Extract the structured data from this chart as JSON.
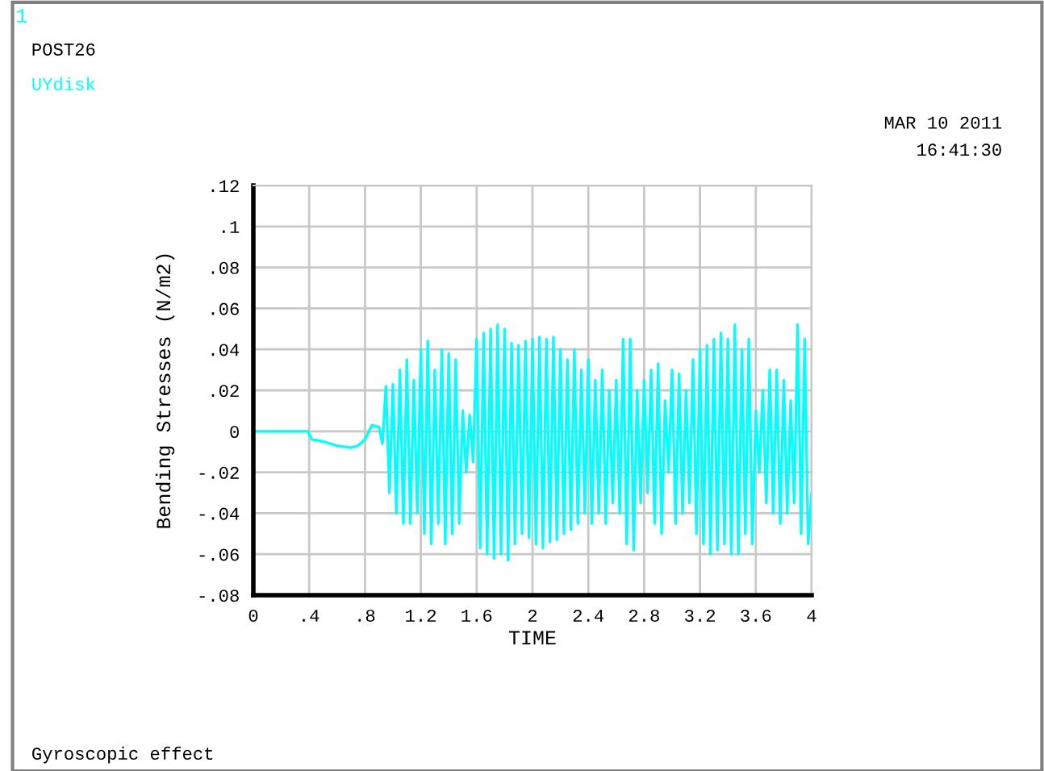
{
  "chart_data": {
    "type": "line",
    "xlabel": "TIME",
    "ylabel": "Bending Stresses (N/m2)",
    "annotations": [
      "1",
      "POST26",
      "MAR 10 2011",
      "16:41:30",
      "Gyroscopic effect"
    ],
    "legend": "top left",
    "grid": true,
    "marker": "none",
    "line_style": "solid",
    "xlim": [
      0,
      4
    ],
    "ylim": [
      -0.08,
      0.12
    ],
    "xticks": [
      0,
      {
        "value": 0.4,
        "label": ".4"
      },
      {
        "value": 0.8,
        "label": ".8"
      },
      {
        "value": 1.2,
        "label": "1.2"
      },
      {
        "value": 1.6,
        "label": "1.6"
      },
      2,
      {
        "value": 2.4,
        "label": "2.4"
      },
      {
        "value": 2.8,
        "label": "2.8"
      },
      {
        "value": 3.2,
        "label": "3.2"
      },
      {
        "value": 3.6,
        "label": "3.6"
      },
      4
    ],
    "yticks": [
      {
        "value": -0.08,
        "label": "-.08"
      },
      {
        "value": -0.06,
        "label": "-.06"
      },
      {
        "value": -0.04,
        "label": "-.04"
      },
      {
        "value": -0.02,
        "label": "-.02"
      },
      0,
      {
        "value": 0.02,
        "label": ".02"
      },
      {
        "value": 0.04,
        "label": ".04"
      },
      {
        "value": 0.06,
        "label": ".06"
      },
      {
        "value": 0.08,
        "label": ".08"
      },
      {
        "value": 0.1,
        "label": ".1"
      },
      {
        "value": 0.12,
        "label": ".12"
      }
    ],
    "series": [
      {
        "name": "UYdisk",
        "color": "#00ffff",
        "x": [
          0,
          0.39,
          0.42,
          0.5,
          0.6,
          0.7,
          0.75,
          0.8,
          0.85,
          0.9,
          0.925,
          0.95,
          0.975,
          1.0,
          1.025,
          1.05,
          1.075,
          1.1,
          1.125,
          1.15,
          1.175,
          1.2,
          1.225,
          1.25,
          1.275,
          1.3,
          1.325,
          1.35,
          1.375,
          1.4,
          1.425,
          1.45,
          1.475,
          1.5,
          1.525,
          1.55,
          1.575,
          1.6,
          1.625,
          1.65,
          1.675,
          1.7,
          1.725,
          1.75,
          1.775,
          1.8,
          1.825,
          1.85,
          1.875,
          1.9,
          1.925,
          1.95,
          1.975,
          2.0,
          2.025,
          2.05,
          2.075,
          2.1,
          2.125,
          2.15,
          2.175,
          2.2,
          2.225,
          2.25,
          2.275,
          2.3,
          2.325,
          2.35,
          2.375,
          2.4,
          2.425,
          2.45,
          2.475,
          2.5,
          2.525,
          2.55,
          2.575,
          2.6,
          2.625,
          2.65,
          2.675,
          2.7,
          2.725,
          2.75,
          2.775,
          2.8,
          2.825,
          2.85,
          2.875,
          2.9,
          2.925,
          2.95,
          2.975,
          3.0,
          3.025,
          3.05,
          3.075,
          3.1,
          3.125,
          3.15,
          3.175,
          3.2,
          3.225,
          3.25,
          3.275,
          3.3,
          3.325,
          3.35,
          3.375,
          3.4,
          3.425,
          3.45,
          3.475,
          3.5,
          3.525,
          3.55,
          3.575,
          3.6,
          3.625,
          3.65,
          3.675,
          3.7,
          3.725,
          3.75,
          3.775,
          3.8,
          3.825,
          3.85,
          3.875,
          3.9,
          3.925,
          3.95,
          3.975,
          4.0
        ],
        "values": [
          0,
          0,
          -0.004,
          -0.005,
          -0.007,
          -0.008,
          -0.007,
          -0.004,
          0.003,
          0.002,
          -0.006,
          0.022,
          -0.03,
          0.023,
          -0.04,
          0.03,
          -0.045,
          0.035,
          -0.045,
          0.025,
          -0.04,
          0.04,
          -0.05,
          0.044,
          -0.055,
          0.03,
          -0.045,
          0.04,
          -0.055,
          0.038,
          -0.05,
          0.035,
          -0.045,
          0.01,
          -0.02,
          0.008,
          -0.015,
          0.045,
          -0.057,
          0.048,
          -0.06,
          0.05,
          -0.062,
          0.052,
          -0.06,
          0.05,
          -0.063,
          0.043,
          -0.055,
          0.042,
          -0.05,
          0.044,
          -0.052,
          0.045,
          -0.055,
          0.046,
          -0.057,
          0.045,
          -0.054,
          0.046,
          -0.053,
          0.04,
          -0.05,
          0.035,
          -0.048,
          0.04,
          -0.045,
          0.03,
          -0.04,
          0.035,
          -0.045,
          0.025,
          -0.04,
          0.03,
          -0.045,
          0.02,
          -0.035,
          0.025,
          -0.04,
          0.045,
          -0.055,
          0.045,
          -0.058,
          0.02,
          -0.035,
          0.025,
          -0.03,
          0.03,
          -0.045,
          0.033,
          -0.05,
          0.015,
          -0.02,
          0.03,
          -0.045,
          0.028,
          -0.04,
          0.02,
          -0.035,
          0.035,
          -0.05,
          0.04,
          -0.055,
          0.042,
          -0.06,
          0.045,
          -0.058,
          0.048,
          -0.055,
          0.045,
          -0.06,
          0.052,
          -0.06,
          0.04,
          -0.05,
          0.045,
          -0.055,
          0.01,
          -0.02,
          0.02,
          -0.035,
          0.03,
          -0.04,
          0.03,
          -0.045,
          0.025,
          -0.04,
          0.015,
          -0.035,
          0.052,
          -0.05,
          0.045,
          -0.055,
          -0.03
        ]
      }
    ]
  }
}
